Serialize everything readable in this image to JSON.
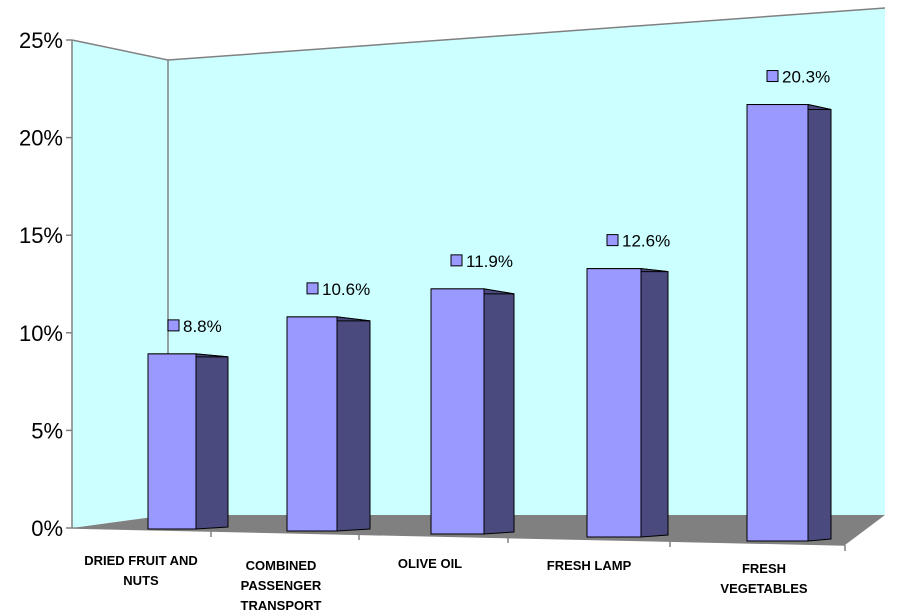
{
  "chart_data": {
    "type": "bar",
    "title": "",
    "xlabel": "",
    "ylabel": "",
    "categories": [
      [
        "DRIED FRUIT AND",
        "NUTS"
      ],
      [
        "COMBINED",
        "PASSENGER",
        "TRANSPORT"
      ],
      [
        "OLIVE OIL"
      ],
      [
        "FRESH LAMP"
      ],
      [
        "FRESH",
        "VEGETABLES"
      ]
    ],
    "values": [
      8.8,
      10.6,
      11.9,
      12.6,
      20.3
    ],
    "data_labels": [
      "8.8%",
      "10.6%",
      "11.9%",
      "12.6%",
      "20.3%"
    ],
    "y_ticks": [
      "0%",
      "5%",
      "10%",
      "15%",
      "20%",
      "25%"
    ],
    "ylim": [
      0,
      25
    ],
    "grid": false,
    "legend": "none",
    "colors": {
      "bar_front": "#9999ff",
      "bar_side": "#4a4a7f",
      "wall": "#ccffff",
      "floor": "#808080"
    }
  }
}
